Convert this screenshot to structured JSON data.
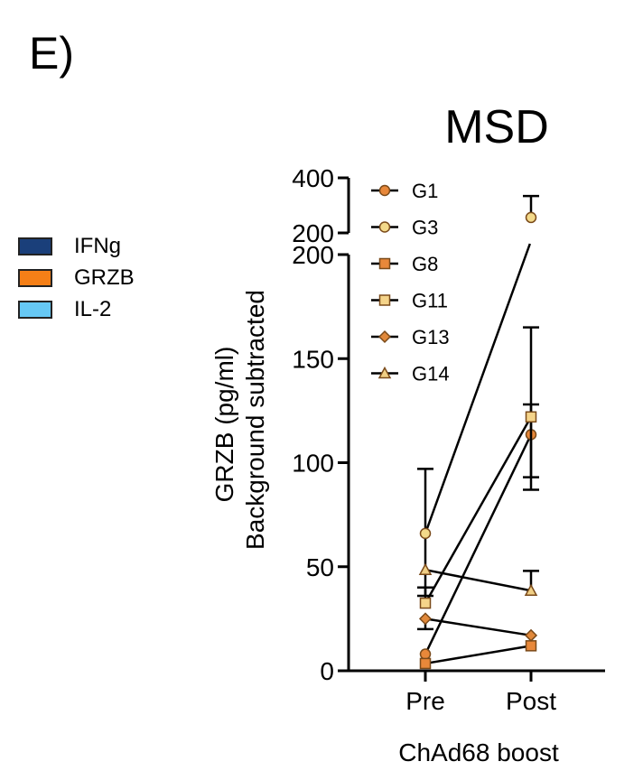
{
  "panel_label": "E)",
  "legend": [
    {
      "label": "IFNg",
      "color": "#1a3f7a"
    },
    {
      "label": "GRZB",
      "color": "#f57f17"
    },
    {
      "label": "IL-2",
      "color": "#66c8f4"
    }
  ],
  "chart_data": {
    "type": "line",
    "title": "MSD",
    "ylabel_line1": "GRZB (pg/ml)",
    "ylabel_line2": "Background subtracted",
    "xlabel": "ChAd68 boost",
    "categories": [
      "Pre",
      "Post"
    ],
    "y_axis": {
      "broken": true,
      "lower_range": [
        0,
        200
      ],
      "upper_range": [
        200,
        400
      ],
      "lower_ticks": [
        "0",
        "50",
        "100",
        "150",
        "200"
      ],
      "upper_ticks": [
        "200",
        "400"
      ]
    },
    "grid": false,
    "legend_position": "top-left",
    "series": [
      {
        "name": "G1",
        "marker": "circle",
        "color": "#e8883a",
        "values": [
          8,
          113.5
        ],
        "err_up": [
          null,
          128
        ],
        "err_down": [
          null,
          93
        ]
      },
      {
        "name": "G3",
        "marker": "circle",
        "color": "#f3d98a",
        "values": [
          66,
          256
        ],
        "err_up": [
          97,
          334
        ],
        "err_down": [
          36,
          null
        ]
      },
      {
        "name": "G8",
        "marker": "square",
        "color": "#e8883a",
        "values": [
          3.5,
          12
        ],
        "err_up": [
          null,
          null
        ],
        "err_down": [
          null,
          null
        ]
      },
      {
        "name": "G11",
        "marker": "square",
        "color": "#f5d48a",
        "values": [
          32.5,
          122
        ],
        "err_up": [
          40,
          165
        ],
        "err_down": [
          null,
          87
        ]
      },
      {
        "name": "G13",
        "marker": "diamond",
        "color": "#e0883a",
        "values": [
          25,
          17
        ],
        "err_up": [
          null,
          null
        ],
        "err_down": [
          20,
          null
        ]
      },
      {
        "name": "G14",
        "marker": "triangle",
        "color": "#f0cf85",
        "values": [
          48.5,
          38.5
        ],
        "err_up": [
          null,
          48
        ],
        "err_down": [
          null,
          null
        ]
      }
    ]
  }
}
